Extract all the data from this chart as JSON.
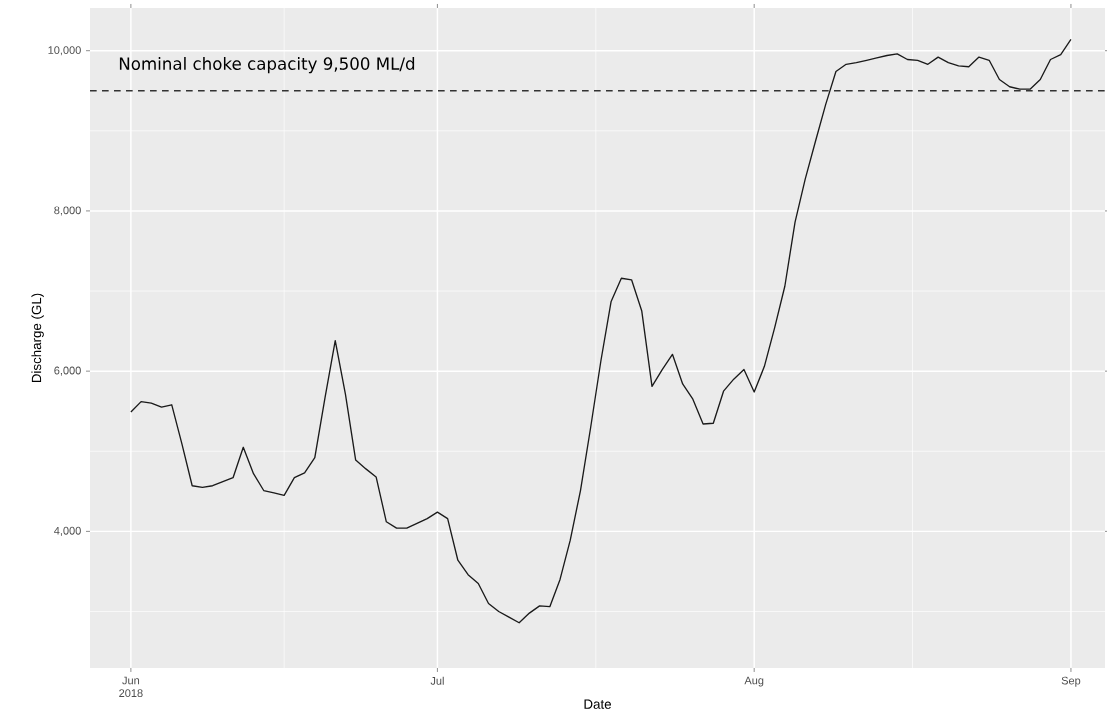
{
  "chart_data": {
    "type": "line",
    "xlabel": "Date",
    "ylabel": "Discharge (GL)",
    "x": [
      "2018-06-01",
      "2018-06-02",
      "2018-06-03",
      "2018-06-04",
      "2018-06-05",
      "2018-06-06",
      "2018-06-07",
      "2018-06-08",
      "2018-06-09",
      "2018-06-10",
      "2018-06-11",
      "2018-06-12",
      "2018-06-13",
      "2018-06-14",
      "2018-06-15",
      "2018-06-16",
      "2018-06-17",
      "2018-06-18",
      "2018-06-19",
      "2018-06-20",
      "2018-06-21",
      "2018-06-22",
      "2018-06-23",
      "2018-06-24",
      "2018-06-25",
      "2018-06-26",
      "2018-06-27",
      "2018-06-28",
      "2018-06-29",
      "2018-06-30",
      "2018-07-01",
      "2018-07-02",
      "2018-07-03",
      "2018-07-04",
      "2018-07-05",
      "2018-07-06",
      "2018-07-07",
      "2018-07-08",
      "2018-07-09",
      "2018-07-10",
      "2018-07-11",
      "2018-07-12",
      "2018-07-13",
      "2018-07-14",
      "2018-07-15",
      "2018-07-16",
      "2018-07-17",
      "2018-07-18",
      "2018-07-19",
      "2018-07-20",
      "2018-07-21",
      "2018-07-22",
      "2018-07-23",
      "2018-07-24",
      "2018-07-25",
      "2018-07-26",
      "2018-07-27",
      "2018-07-28",
      "2018-07-29",
      "2018-07-30",
      "2018-07-31",
      "2018-08-01",
      "2018-08-02",
      "2018-08-03",
      "2018-08-04",
      "2018-08-05",
      "2018-08-06",
      "2018-08-07",
      "2018-08-08",
      "2018-08-09",
      "2018-08-10",
      "2018-08-11",
      "2018-08-12",
      "2018-08-13",
      "2018-08-14",
      "2018-08-15",
      "2018-08-16",
      "2018-08-17",
      "2018-08-18",
      "2018-08-19",
      "2018-08-20",
      "2018-08-21",
      "2018-08-22",
      "2018-08-23",
      "2018-08-24",
      "2018-08-25",
      "2018-08-26",
      "2018-08-27",
      "2018-08-28",
      "2018-08-29",
      "2018-08-30",
      "2018-08-31",
      "2018-09-01"
    ],
    "values": [
      5490,
      5620,
      5600,
      5550,
      5580,
      5090,
      4570,
      4550,
      4570,
      4620,
      4670,
      5050,
      4720,
      4510,
      4480,
      4450,
      4670,
      4730,
      4920,
      5670,
      6380,
      5710,
      4890,
      4780,
      4680,
      4120,
      4040,
      4040,
      4100,
      4160,
      4240,
      4160,
      3640,
      3460,
      3350,
      3100,
      3000,
      2930,
      2860,
      2980,
      3070,
      3060,
      3400,
      3890,
      4510,
      5300,
      6130,
      6870,
      7160,
      7140,
      6750,
      5810,
      6020,
      6210,
      5840,
      5650,
      5340,
      5350,
      5750,
      5900,
      6020,
      5740,
      6060,
      6540,
      7060,
      7860,
      8400,
      8870,
      9330,
      9740,
      9830,
      9850,
      9880,
      9910,
      9940,
      9960,
      9890,
      9880,
      9830,
      9920,
      9850,
      9810,
      9800,
      9920,
      9880,
      9640,
      9550,
      9520,
      9520,
      9640,
      9890,
      9950,
      10140
    ],
    "color": "#1a1a1a",
    "xlim": [
      "2018-05-28",
      "2018-09-04T08:00"
    ],
    "xticks": [
      {
        "value": "2018-06-01",
        "label": "Jun 2018"
      },
      {
        "value": "2018-07-01",
        "label": "Jul"
      },
      {
        "value": "2018-08-01",
        "label": "Aug"
      },
      {
        "value": "2018-09-01",
        "label": "Sep"
      },
      {
        "value": "2018-06-16",
        "label": null
      },
      {
        "value": "2018-07-16T12:00",
        "label": null
      },
      {
        "value": "2018-08-16T12:00",
        "label": null
      }
    ],
    "ylim": [
      2295,
      10533
    ],
    "yticks": [
      {
        "value": 4000,
        "label": "4,000"
      },
      {
        "value": 6000,
        "label": "6,000"
      },
      {
        "value": 8000,
        "label": "8,000"
      },
      {
        "value": 10000,
        "label": "10,000"
      },
      {
        "value": 3000,
        "label": null
      },
      {
        "value": 5000,
        "label": null
      },
      {
        "value": 7000,
        "label": null
      },
      {
        "value": 9000,
        "label": null
      }
    ],
    "ref_lines": [
      {
        "axis": "y",
        "value": 9500,
        "label": "Nominal choke capacity 9,500 ML/d",
        "line_style": "dashed",
        "color": "#333333"
      }
    ],
    "grid": true
  }
}
